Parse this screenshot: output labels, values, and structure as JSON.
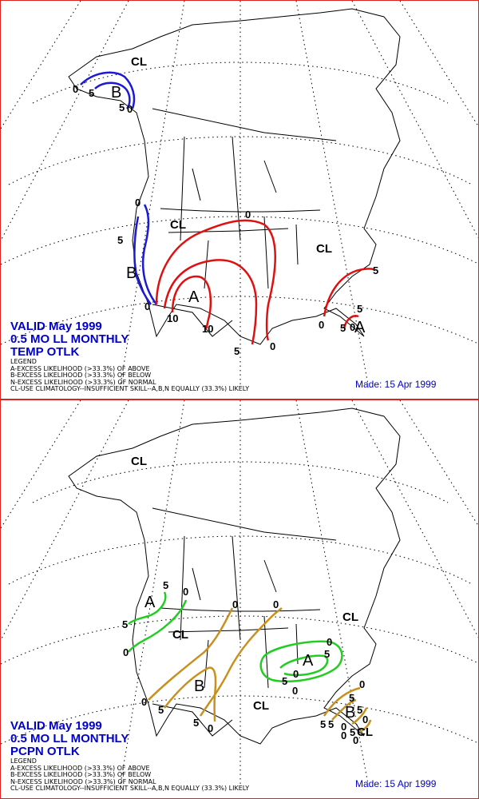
{
  "temperature_panel": {
    "valid_line1": "VALID May 1999",
    "valid_line2": "0.5 MO LL MONTHLY",
    "valid_line3": "TEMP OTLK",
    "legend_title": "LEGEND",
    "legend_a": "A-EXCESS LIKELIHOOD (>33.3%) OF ABOVE",
    "legend_b": "B-EXCESS LIKELIHOOD (>33.3%) OF BELOW",
    "legend_n": "N-EXCESS LIKELIHOOD (>33.3%) OF NORMAL",
    "legend_cl": "CL-USE CLIMATOLOGY--INSUFFICIENT SKILL--A,B,N EQUALLY (33.3%) LIKELY",
    "made": "Made: 15 Apr 1999",
    "region_labels": [
      "CL",
      "B",
      "CL",
      "CL",
      "B",
      "A",
      "A"
    ],
    "contour_labels": [
      "0",
      "5",
      "5",
      "0",
      "0",
      "5",
      "0",
      "5",
      "0",
      "10",
      "10",
      "5",
      "0",
      "0",
      "5",
      "0",
      "5"
    ],
    "colors": {
      "below": "#1a1ad6",
      "above": "#e01010"
    }
  },
  "precipitation_panel": {
    "valid_line1": "VALID May 1999",
    "valid_line2": "0.5 MO LL MONTHLY",
    "valid_line3": "PCPN OTLK",
    "legend_title": "LEGEND",
    "legend_a": "A-EXCESS LIKELIHOOD (>33.3%) OF ABOVE",
    "legend_b": "B-EXCESS LIKELIHOOD (>33.3%) OF BELOW",
    "legend_n": "N-EXCESS LIKELIHOOD (>33.3%) OF NORMAL",
    "legend_cl": "CL-USE CLIMATOLOGY--INSUFFICIENT SKILL--A,B,N EQUALLY (33.3%) LIKELY",
    "made": "Made: 15 Apr 1999",
    "region_labels": [
      "CL",
      "A",
      "CL",
      "B",
      "CL",
      "A",
      "CL",
      "B",
      "CL"
    ],
    "contour_labels": [
      "5",
      "0",
      "5",
      "0",
      "0",
      "0",
      "0",
      "5",
      "0",
      "5",
      "0",
      "5",
      "0",
      "0",
      "5",
      "5",
      "0",
      "5",
      "5",
      "0",
      "5",
      "0",
      "0",
      "5",
      "0"
    ],
    "colors": {
      "above": "#22cc22",
      "below": "#c8901e"
    }
  }
}
